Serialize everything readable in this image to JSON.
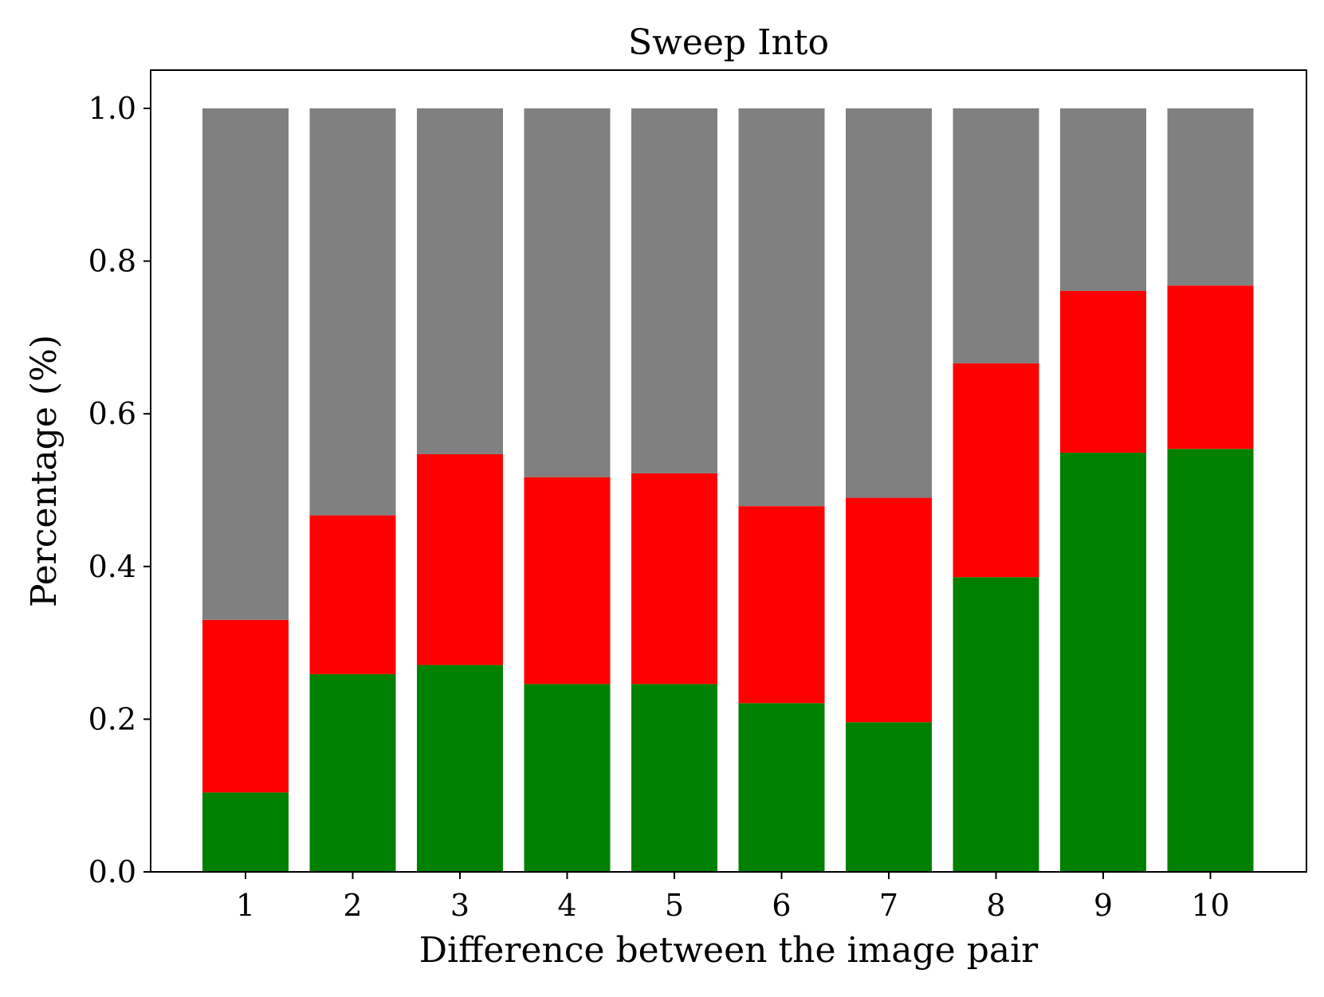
{
  "chart_data": {
    "type": "bar",
    "stacked": true,
    "title": "Sweep Into",
    "xlabel": "Difference between the image pair",
    "ylabel": "Percentage (%)",
    "categories": [
      "1",
      "2",
      "3",
      "4",
      "5",
      "6",
      "7",
      "8",
      "9",
      "10"
    ],
    "ylim": [
      0.0,
      1.05
    ],
    "yticks": [
      "0.0",
      "0.2",
      "0.4",
      "0.6",
      "0.8",
      "1.0"
    ],
    "grid": false,
    "series": [
      {
        "color": "#008000",
        "values": [
          0.104,
          0.259,
          0.271,
          0.246,
          0.246,
          0.221,
          0.196,
          0.386,
          0.549,
          0.554
        ]
      },
      {
        "color": "#ff0000",
        "values": [
          0.226,
          0.208,
          0.276,
          0.271,
          0.276,
          0.258,
          0.294,
          0.28,
          0.212,
          0.214
        ]
      },
      {
        "color": "#808080",
        "values": [
          0.67,
          0.533,
          0.453,
          0.483,
          0.478,
          0.521,
          0.51,
          0.334,
          0.239,
          0.232
        ]
      }
    ]
  }
}
